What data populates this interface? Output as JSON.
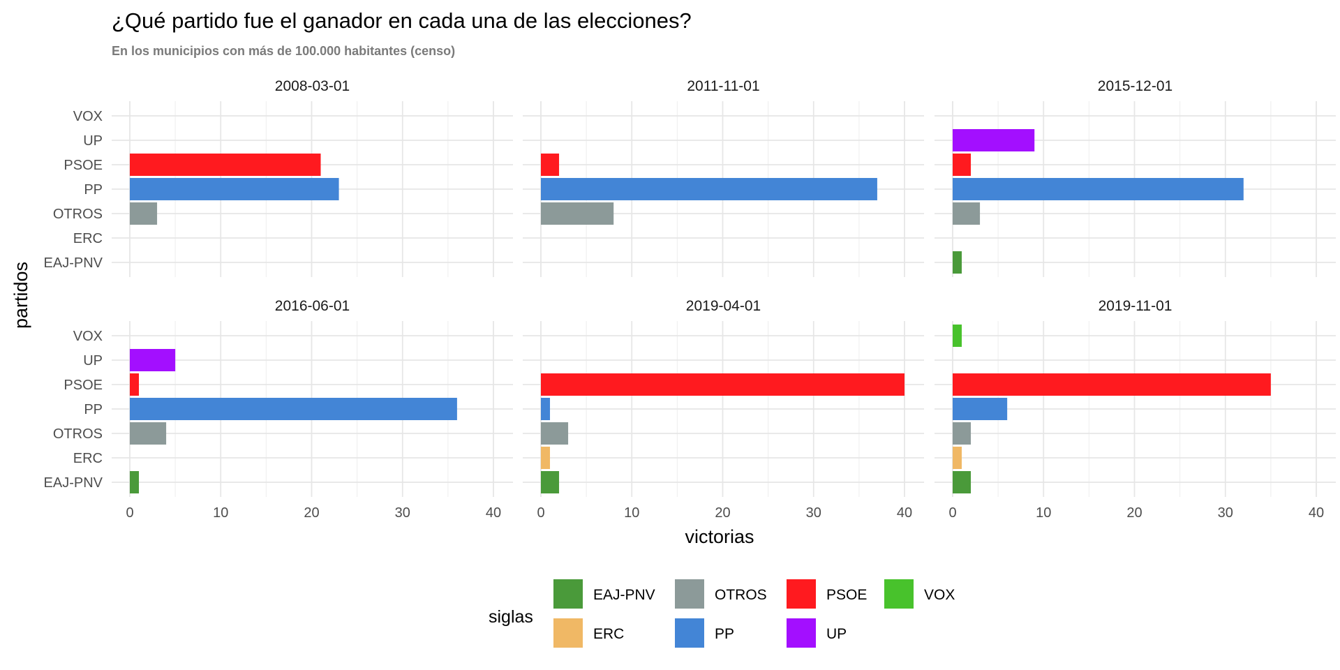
{
  "title": "¿Qué partido fue el ganador en cada una de las elecciones?",
  "subtitle": "En los municipios con más de 100.000 habitantes (censo)",
  "chart_data": {
    "type": "bar",
    "orientation": "horizontal",
    "facet_by": "election date",
    "xlabel": "victorias",
    "ylabel": "partidos",
    "xlim": [
      0,
      42
    ],
    "x_ticks": [
      0,
      10,
      20,
      30,
      40
    ],
    "grid": true,
    "categories": [
      "VOX",
      "UP",
      "PSOE",
      "PP",
      "OTROS",
      "ERC",
      "EAJ-PNV"
    ],
    "facets": [
      {
        "label": "2008-03-01",
        "values": {
          "VOX": 0,
          "UP": 0,
          "PSOE": 21,
          "PP": 23,
          "OTROS": 3,
          "ERC": 0,
          "EAJ-PNV": 0
        }
      },
      {
        "label": "2011-11-01",
        "values": {
          "VOX": 0,
          "UP": 0,
          "PSOE": 2,
          "PP": 37,
          "OTROS": 8,
          "ERC": 0,
          "EAJ-PNV": 0
        }
      },
      {
        "label": "2015-12-01",
        "values": {
          "VOX": 0,
          "UP": 9,
          "PSOE": 2,
          "PP": 32,
          "OTROS": 3,
          "ERC": 0,
          "EAJ-PNV": 1
        }
      },
      {
        "label": "2016-06-01",
        "values": {
          "VOX": 0,
          "UP": 5,
          "PSOE": 1,
          "PP": 36,
          "OTROS": 4,
          "ERC": 0,
          "EAJ-PNV": 1
        }
      },
      {
        "label": "2019-04-01",
        "values": {
          "VOX": 0,
          "UP": 0,
          "PSOE": 40,
          "PP": 1,
          "OTROS": 3,
          "ERC": 1,
          "EAJ-PNV": 2
        }
      },
      {
        "label": "2019-11-01",
        "values": {
          "VOX": 1,
          "UP": 0,
          "PSOE": 35,
          "PP": 6,
          "OTROS": 2,
          "ERC": 1,
          "EAJ-PNV": 2
        }
      }
    ],
    "colors": {
      "EAJ-PNV": "#4a9a3a",
      "ERC": "#f0b865",
      "OTROS": "#8c9a99",
      "PP": "#4385d6",
      "PSOE": "#ff1a1f",
      "UP": "#a30fff",
      "VOX": "#48c22c"
    },
    "legend": {
      "title": "siglas",
      "position": "bottom",
      "entries": [
        "EAJ-PNV",
        "ERC",
        "OTROS",
        "PP",
        "PSOE",
        "UP",
        "VOX"
      ]
    }
  }
}
